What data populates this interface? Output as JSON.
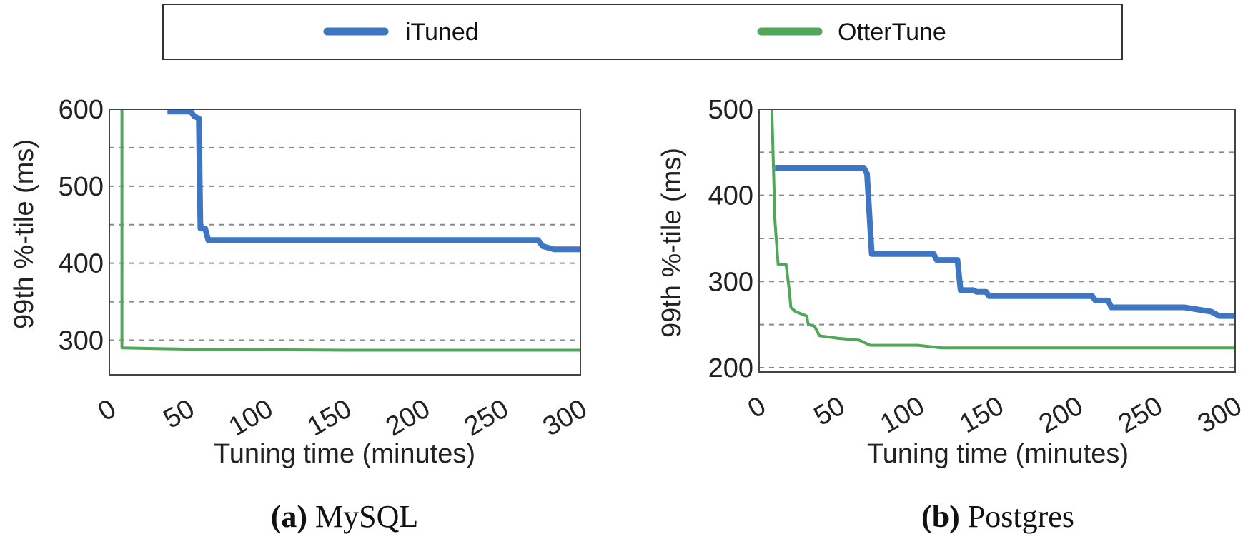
{
  "legend": {
    "entries": [
      {
        "label": "iTuned",
        "color": "#3f76c3"
      },
      {
        "label": "OtterTune",
        "color": "#4fa75a"
      }
    ]
  },
  "chart_data": [
    {
      "type": "line",
      "caption_letter": "(a)",
      "caption_text": "MySQL",
      "xlabel": "Tuning time (minutes)",
      "ylabel": "99th %-tile (ms)",
      "xlim": [
        0,
        300
      ],
      "ylim": [
        255,
        600
      ],
      "xticks": [
        0,
        50,
        100,
        150,
        200,
        250,
        300
      ],
      "yticks": [
        300,
        400,
        500,
        600
      ],
      "grid_lines": [
        300,
        350,
        400,
        450,
        500,
        550
      ],
      "grid": true,
      "series": [
        {
          "name": "iTuned",
          "color": "#3f76c3",
          "points": [
            [
              37,
              597
            ],
            [
              52,
              597
            ],
            [
              54,
              591
            ],
            [
              57,
              588
            ],
            [
              58,
              445
            ],
            [
              61,
              445
            ],
            [
              63,
              430
            ],
            [
              273,
              430
            ],
            [
              276,
              422
            ],
            [
              283,
              418
            ],
            [
              300,
              418
            ]
          ]
        },
        {
          "name": "OtterTune",
          "color": "#4fa75a",
          "points": [
            [
              8,
              600
            ],
            [
              8,
              290
            ],
            [
              30,
              289
            ],
            [
              60,
              288
            ],
            [
              150,
              287
            ],
            [
              300,
              287
            ]
          ]
        }
      ]
    },
    {
      "type": "line",
      "caption_letter": "(b)",
      "caption_text": "Postgres",
      "xlabel": "Tuning time (minutes)",
      "ylabel": "99th %-tile (ms)",
      "xlim": [
        0,
        300
      ],
      "ylim": [
        195,
        500
      ],
      "xticks": [
        0,
        50,
        100,
        150,
        200,
        250,
        300
      ],
      "yticks": [
        200,
        300,
        400,
        500
      ],
      "grid_lines": [
        200,
        250,
        300,
        350,
        400,
        450
      ],
      "grid": true,
      "series": [
        {
          "name": "iTuned",
          "color": "#3f76c3",
          "points": [
            [
              10,
              432
            ],
            [
              66,
              432
            ],
            [
              68,
              425
            ],
            [
              71,
              332
            ],
            [
              110,
              332
            ],
            [
              112,
              325
            ],
            [
              125,
              325
            ],
            [
              127,
              290
            ],
            [
              135,
              290
            ],
            [
              137,
              288
            ],
            [
              143,
              288
            ],
            [
              145,
              283
            ],
            [
              210,
              283
            ],
            [
              212,
              278
            ],
            [
              220,
              278
            ],
            [
              222,
              270
            ],
            [
              268,
              270
            ],
            [
              285,
              265
            ],
            [
              290,
              260
            ],
            [
              300,
              260
            ]
          ]
        },
        {
          "name": "OtterTune",
          "color": "#4fa75a",
          "points": [
            [
              8,
              500
            ],
            [
              10,
              370
            ],
            [
              12,
              320
            ],
            [
              17,
              320
            ],
            [
              19,
              290
            ],
            [
              20,
              270
            ],
            [
              23,
              265
            ],
            [
              30,
              260
            ],
            [
              31,
              250
            ],
            [
              35,
              248
            ],
            [
              38,
              237
            ],
            [
              50,
              234
            ],
            [
              63,
              232
            ],
            [
              70,
              226
            ],
            [
              100,
              226
            ],
            [
              115,
              223
            ],
            [
              300,
              223
            ]
          ]
        }
      ]
    }
  ]
}
